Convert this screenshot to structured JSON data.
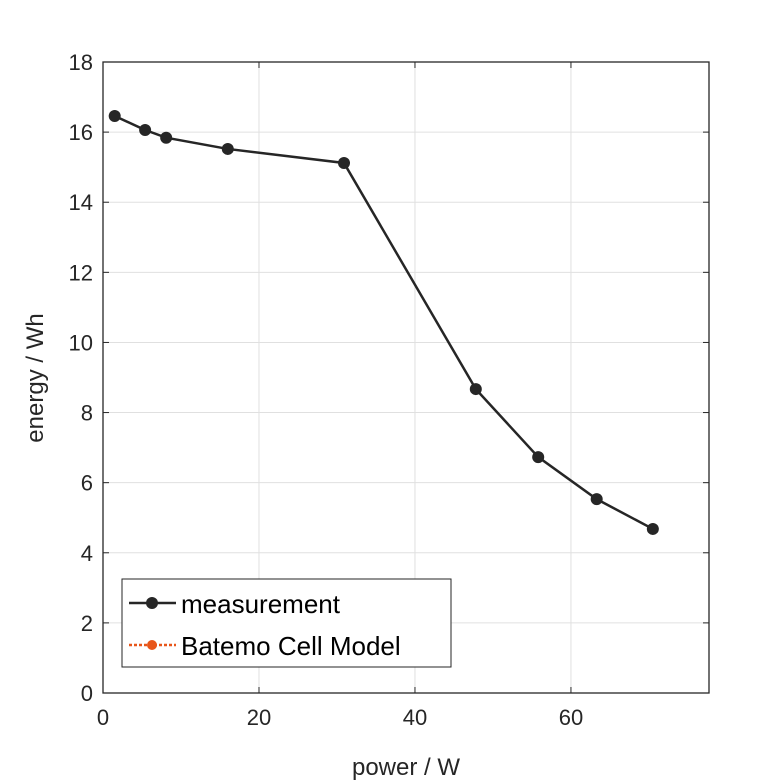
{
  "chart_data": {
    "type": "line",
    "title": "",
    "xlabel": "power / W",
    "ylabel": "energy / Wh",
    "xlim": [
      0,
      77.7
    ],
    "ylim": [
      0,
      18
    ],
    "xticks": [
      0,
      20,
      40,
      60
    ],
    "yticks": [
      0,
      2,
      4,
      6,
      8,
      10,
      12,
      14,
      16,
      18
    ],
    "grid": true,
    "legend_position": "bottom-left",
    "series": [
      {
        "name": "measurement",
        "color": "#262626",
        "style": "solid",
        "marker": "circle",
        "x": [
          1.5,
          5.4,
          8.1,
          16.0,
          30.9,
          47.8,
          55.8,
          63.3,
          70.5
        ],
        "y": [
          16.46,
          16.06,
          15.84,
          15.52,
          15.12,
          8.67,
          6.73,
          5.53,
          4.68
        ]
      },
      {
        "name": "Batemo Cell Model",
        "color": "#e8561a",
        "style": "dotted",
        "marker": "circle",
        "x": [],
        "y": []
      }
    ]
  }
}
